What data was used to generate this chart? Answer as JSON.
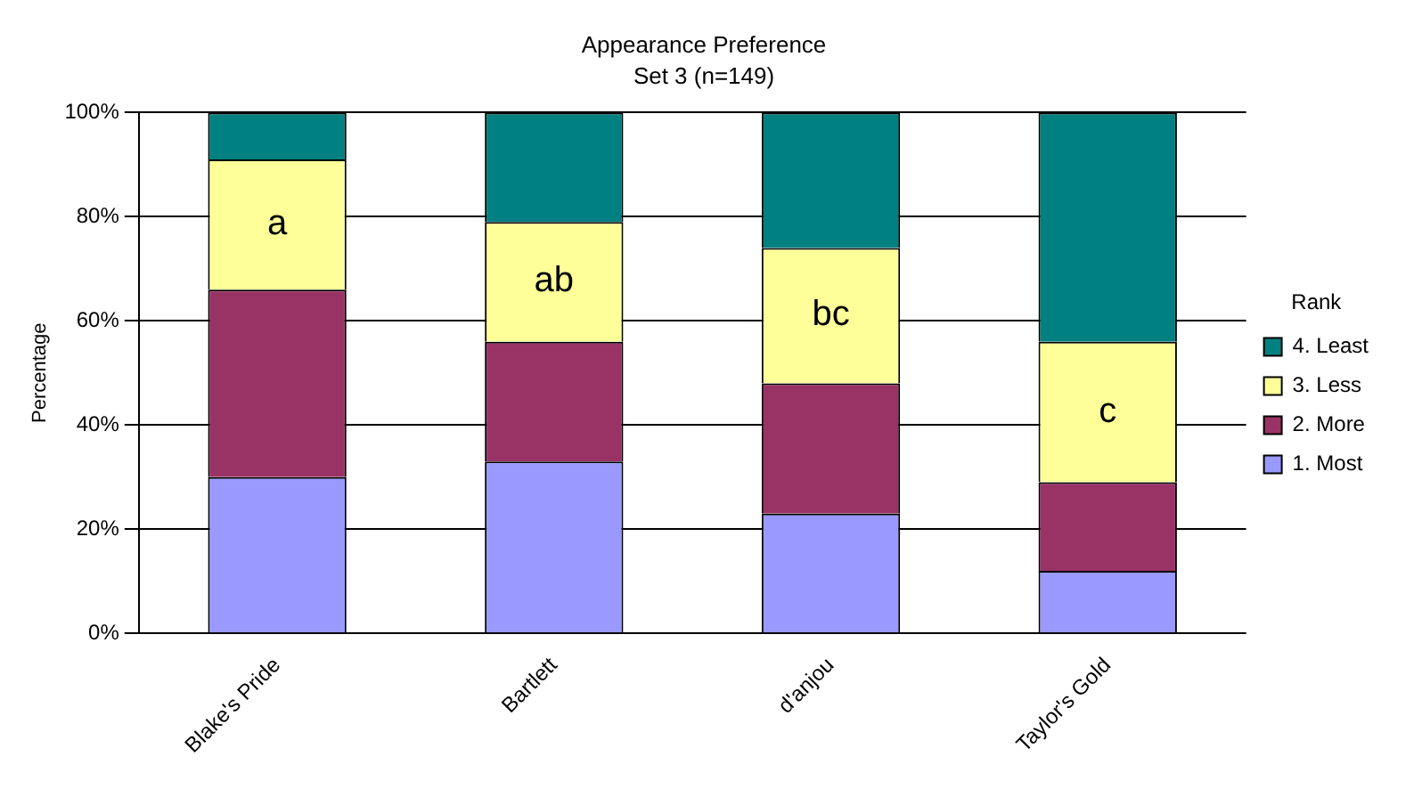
{
  "chart_data": {
    "type": "bar",
    "title": "Appearance Preference",
    "subtitle": "Set 3 (n=149)",
    "ylabel": "Percentage",
    "legend_title": "Rank",
    "categories": [
      "Blake's Pride",
      "Bartlett",
      "d'anjou",
      "Taylor's Gold"
    ],
    "stacked": true,
    "series": [
      {
        "name": "1. Most",
        "color": "#9999ff",
        "values": [
          30,
          33,
          23,
          12
        ]
      },
      {
        "name": "2. More",
        "color": "#993366",
        "values": [
          36,
          23,
          25,
          17
        ]
      },
      {
        "name": "3. Less",
        "color": "#ffff99",
        "values": [
          25,
          23,
          26,
          27
        ]
      },
      {
        "name": "4. Least",
        "color": "#008080",
        "values": [
          9,
          21,
          26,
          44
        ]
      }
    ],
    "ylim": [
      0,
      100
    ],
    "yticks": [
      {
        "value": 0,
        "label": "0%"
      },
      {
        "value": 20,
        "label": "20%"
      },
      {
        "value": 40,
        "label": "40%"
      },
      {
        "value": 60,
        "label": "60%"
      },
      {
        "value": 80,
        "label": "80%"
      },
      {
        "value": 100,
        "label": "100%"
      }
    ],
    "grid": "y",
    "legend": "right",
    "annotations": [
      "a",
      "ab",
      "bc",
      "c"
    ]
  }
}
